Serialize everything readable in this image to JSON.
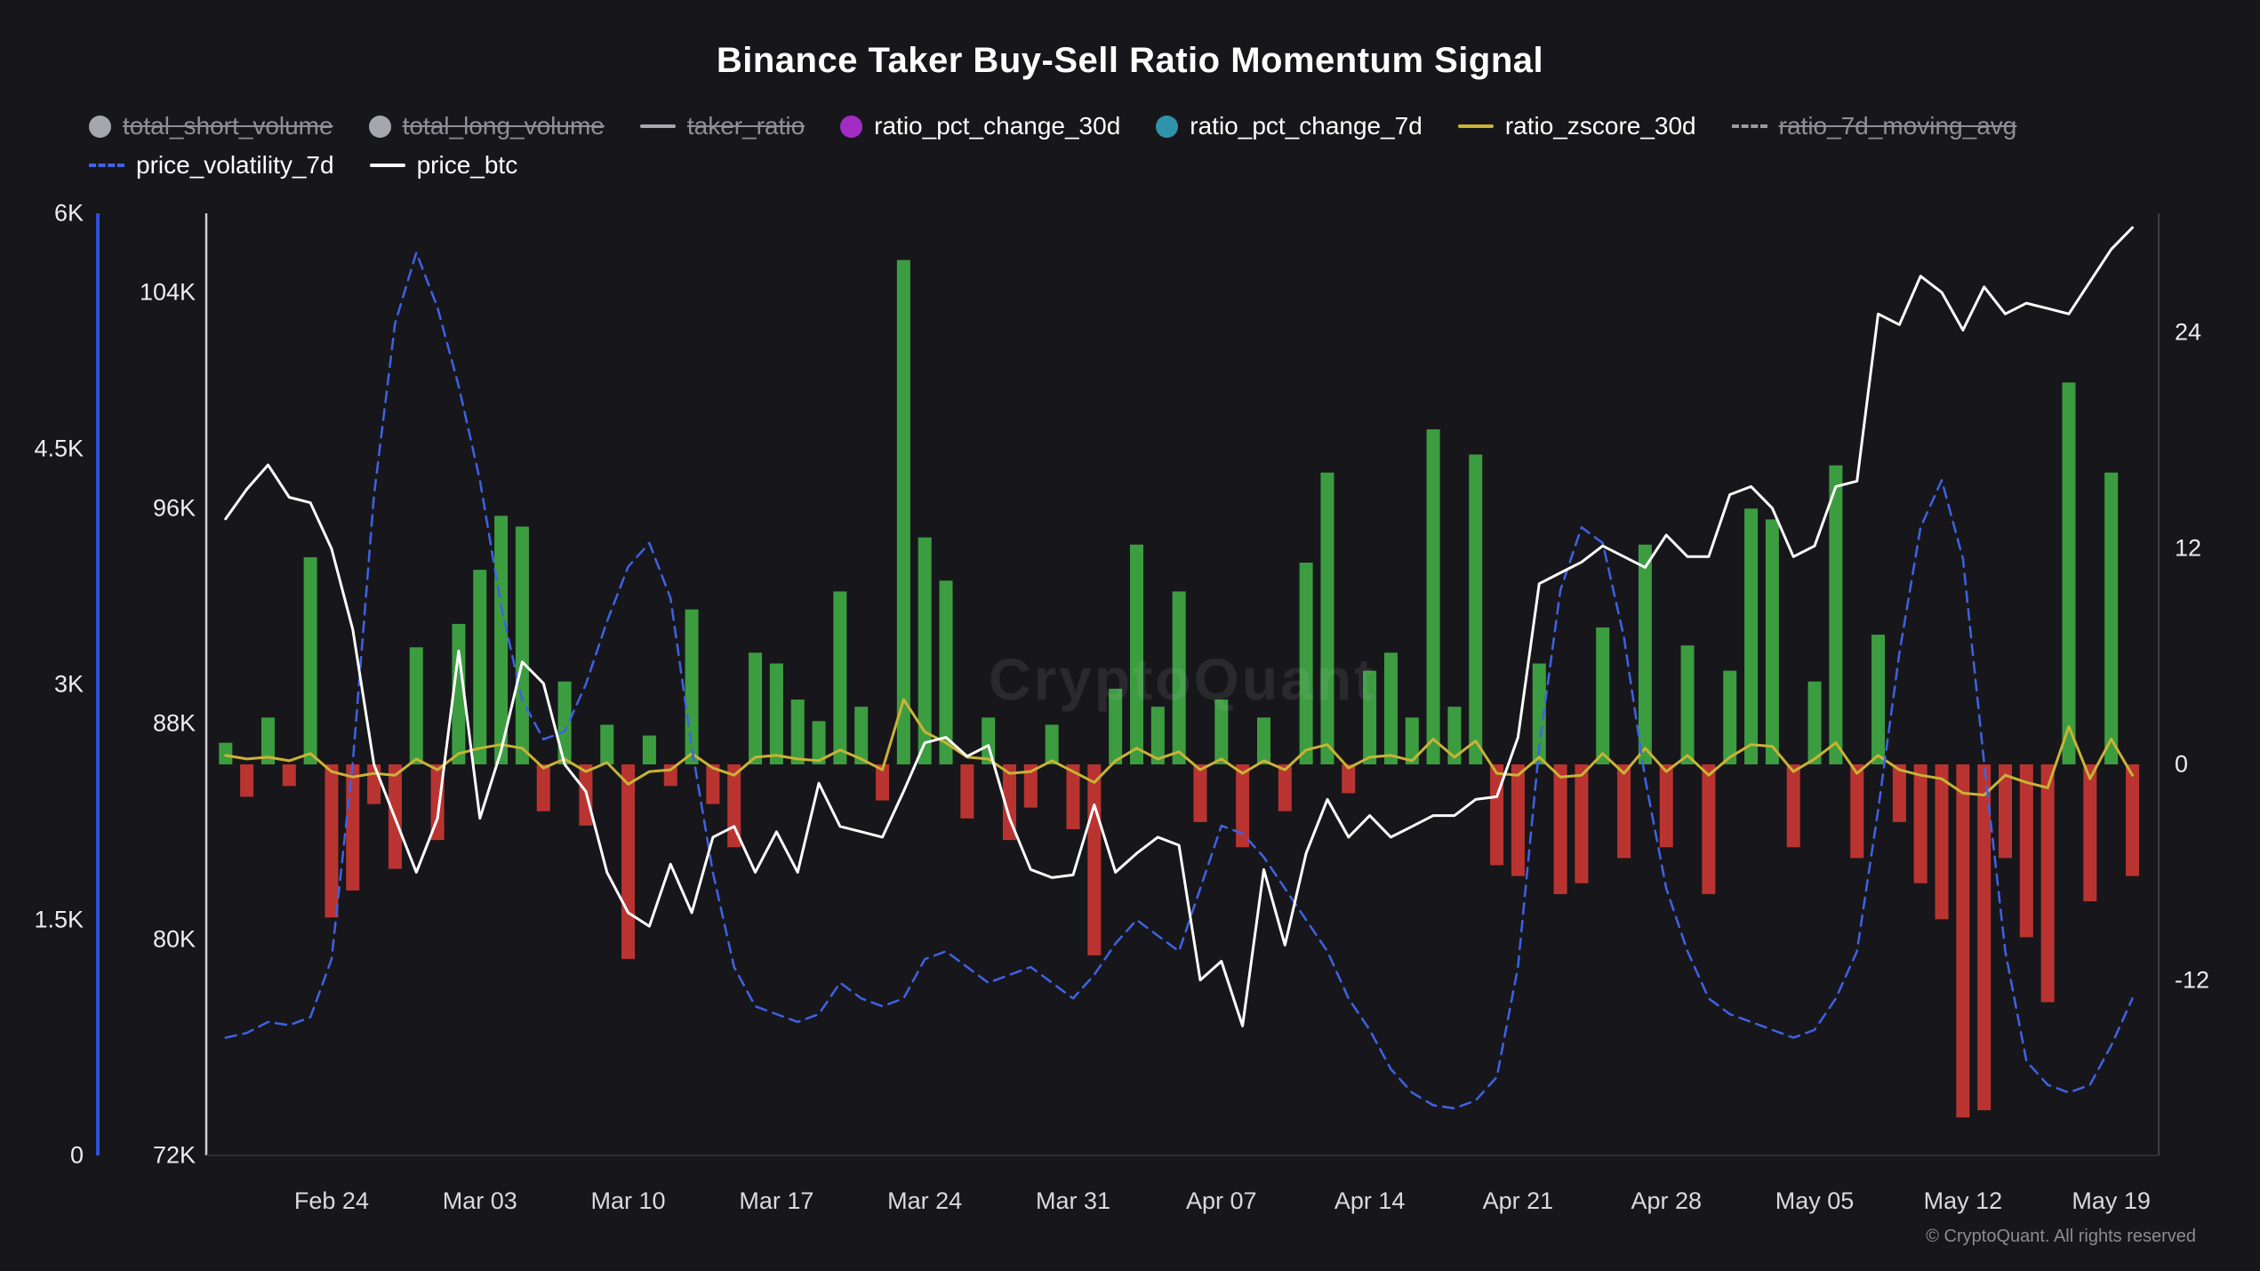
{
  "header": {
    "title": "Binance Taker Buy-Sell Ratio Momentum Signal"
  },
  "watermark": "CryptoQuant",
  "footer": "© CryptoQuant. All rights reserved",
  "colors": {
    "background": "#17171b",
    "bar_positive": "#3c9d40",
    "bar_negative": "#b93431",
    "price_line": "#ffffff",
    "volatility_line": "#3f62e4",
    "zscore_line": "#c9b335",
    "volatility_axis": "#2f4fd6",
    "disabled_legend": "#a6a6ae"
  },
  "legend": {
    "rows": [
      [
        {
          "label": "total_short_volume",
          "icon": "circle",
          "color": "#a6a6ae",
          "disabled": true
        },
        {
          "label": "total_long_volume",
          "icon": "circle",
          "color": "#a6a6ae",
          "disabled": true
        },
        {
          "label": "taker_ratio",
          "icon": "line",
          "color": "#a6a6ae",
          "disabled": true
        },
        {
          "label": "ratio_pct_change_30d",
          "icon": "circle",
          "color": "#a32cc4",
          "disabled": false
        },
        {
          "label": "ratio_pct_change_7d",
          "icon": "circle",
          "color": "#2f94aa",
          "disabled": false
        },
        {
          "label": "ratio_zscore_30d",
          "icon": "line",
          "color": "#c9b335",
          "disabled": false
        },
        {
          "label": "ratio_7d_moving_avg",
          "icon": "dash",
          "color": "#9a9aa0",
          "disabled": true
        }
      ],
      [
        {
          "label": "price_volatility_7d",
          "icon": "dash",
          "color": "#3f62e4",
          "disabled": false
        },
        {
          "label": "price_btc",
          "icon": "line",
          "color": "#ffffff",
          "disabled": false
        }
      ]
    ]
  },
  "chart_data": {
    "type": "bar",
    "title": "Binance Taker Buy-Sell Ratio Momentum Signal",
    "n_points": 91,
    "x_unit": "day",
    "x_ticks": [
      {
        "label": "Feb 24",
        "i": 5
      },
      {
        "label": "Mar 03",
        "i": 12
      },
      {
        "label": "Mar 10",
        "i": 19
      },
      {
        "label": "Mar 17",
        "i": 26
      },
      {
        "label": "Mar 24",
        "i": 33
      },
      {
        "label": "Mar 31",
        "i": 40
      },
      {
        "label": "Apr 07",
        "i": 47
      },
      {
        "label": "Apr 14",
        "i": 54
      },
      {
        "label": "Apr 21",
        "i": 61
      },
      {
        "label": "Apr 28",
        "i": 68
      },
      {
        "label": "May 05",
        "i": 75
      },
      {
        "label": "May 12",
        "i": 82
      },
      {
        "label": "May 19",
        "i": 89
      }
    ],
    "axes": {
      "volatility": {
        "side": "left-outer",
        "min": 0,
        "max": 6000,
        "color": "#2f4fd6",
        "ticks": [
          {
            "label": "6K",
            "v": 6000
          },
          {
            "label": "4.5K",
            "v": 4500
          },
          {
            "label": "3K",
            "v": 3000
          },
          {
            "label": "1.5K",
            "v": 1500
          },
          {
            "label": "0",
            "v": 0
          }
        ]
      },
      "price": {
        "side": "left",
        "min": 72,
        "max": 106.93,
        "unit": "K USD",
        "ticks": [
          {
            "label": "104K",
            "v": 104
          },
          {
            "label": "96K",
            "v": 96
          },
          {
            "label": "88K",
            "v": 88
          },
          {
            "label": "80K",
            "v": 80
          },
          {
            "label": "72K",
            "v": 72
          }
        ]
      },
      "pct": {
        "side": "right",
        "min": -21.7,
        "max": 30.6,
        "ticks": [
          {
            "label": "24",
            "v": 24
          },
          {
            "label": "12",
            "v": 12
          },
          {
            "label": "0",
            "v": 0
          },
          {
            "label": "-12",
            "v": -12
          }
        ]
      }
    },
    "series": [
      {
        "name": "ratio_pct_change",
        "render": "bar",
        "axis": "pct",
        "pos_color": "#3c9d40",
        "neg_color": "#b93431",
        "values": [
          1.2,
          -1.8,
          2.6,
          -1.2,
          11.5,
          -8.5,
          -7.0,
          -2.2,
          -5.8,
          6.5,
          -4.2,
          7.8,
          10.8,
          13.8,
          13.2,
          -2.6,
          4.6,
          -3.4,
          2.2,
          -10.8,
          1.6,
          -1.2,
          8.6,
          -2.2,
          -4.6,
          6.2,
          5.6,
          3.6,
          2.4,
          9.6,
          3.2,
          -2.0,
          28.0,
          12.6,
          10.2,
          -3.0,
          2.6,
          -4.2,
          -2.4,
          2.2,
          -3.6,
          -10.6,
          4.2,
          12.2,
          3.2,
          9.6,
          -3.2,
          3.6,
          -4.6,
          2.6,
          -2.6,
          11.2,
          16.2,
          -1.6,
          5.2,
          6.2,
          2.6,
          18.6,
          3.2,
          17.2,
          -5.6,
          -6.2,
          5.6,
          -7.2,
          -6.6,
          7.6,
          -5.2,
          12.2,
          -4.6,
          6.6,
          -7.2,
          5.2,
          14.2,
          13.6,
          -4.6,
          4.6,
          16.6,
          -5.2,
          7.2,
          -3.2,
          -6.6,
          -8.6,
          -19.6,
          -19.2,
          -5.2,
          -9.6,
          -13.2,
          21.2,
          -7.6,
          16.2,
          -6.2
        ]
      },
      {
        "name": "ratio_zscore_30d",
        "render": "line",
        "axis": "pct",
        "color": "#c9b335",
        "values": [
          0.5,
          0.3,
          0.4,
          0.2,
          0.6,
          -0.4,
          -0.7,
          -0.5,
          -0.6,
          0.3,
          -0.3,
          0.6,
          0.9,
          1.1,
          0.9,
          -0.2,
          0.3,
          -0.4,
          0.1,
          -1.1,
          -0.4,
          -0.3,
          0.6,
          -0.2,
          -0.6,
          0.4,
          0.5,
          0.3,
          0.2,
          0.8,
          0.3,
          -0.3,
          3.6,
          1.8,
          1.2,
          0.4,
          0.3,
          -0.5,
          -0.4,
          0.2,
          -0.4,
          -1.0,
          0.2,
          0.9,
          0.3,
          0.7,
          -0.3,
          0.3,
          -0.5,
          0.2,
          -0.3,
          0.8,
          1.1,
          -0.2,
          0.4,
          0.5,
          0.2,
          1.4,
          0.4,
          1.3,
          -0.5,
          -0.6,
          0.4,
          -0.7,
          -0.6,
          0.6,
          -0.5,
          0.9,
          -0.4,
          0.5,
          -0.6,
          0.4,
          1.1,
          1.0,
          -0.4,
          0.3,
          1.2,
          -0.5,
          0.5,
          -0.3,
          -0.6,
          -0.8,
          -1.6,
          -1.7,
          -0.6,
          -1.0,
          -1.3,
          2.1,
          -0.8,
          1.4,
          -0.6
        ]
      },
      {
        "name": "price_volatility_7d",
        "render": "dashed-line",
        "axis": "volatility",
        "color": "#3f62e4",
        "values": [
          750,
          780,
          850,
          830,
          880,
          1250,
          2500,
          4200,
          5300,
          5750,
          5400,
          4900,
          4300,
          3500,
          2900,
          2650,
          2700,
          3000,
          3400,
          3750,
          3900,
          3550,
          2600,
          1800,
          1200,
          950,
          900,
          850,
          900,
          1100,
          1000,
          950,
          1000,
          1250,
          1300,
          1200,
          1100,
          1150,
          1200,
          1100,
          1000,
          1150,
          1350,
          1500,
          1400,
          1300,
          1700,
          2100,
          2050,
          1900,
          1700,
          1500,
          1300,
          1000,
          800,
          550,
          400,
          320,
          300,
          350,
          500,
          1200,
          2600,
          3600,
          4000,
          3900,
          3300,
          2400,
          1700,
          1300,
          1000,
          900,
          850,
          800,
          750,
          800,
          1000,
          1300,
          2200,
          3200,
          4000,
          4300,
          3800,
          2500,
          1300,
          600,
          450,
          400,
          450,
          700,
          1000
        ]
      },
      {
        "name": "price_btc",
        "render": "line",
        "axis": "price",
        "color": "#ffffff",
        "values": [
          95.6,
          96.7,
          97.6,
          96.4,
          96.2,
          94.5,
          91.5,
          86.5,
          84.5,
          82.5,
          84.5,
          90.7,
          84.5,
          87.0,
          90.3,
          89.5,
          86.5,
          85.5,
          82.5,
          81.0,
          80.5,
          82.8,
          81.0,
          83.8,
          84.2,
          82.5,
          84.0,
          82.5,
          85.8,
          84.2,
          84.0,
          83.8,
          85.5,
          87.3,
          87.5,
          86.8,
          87.2,
          84.5,
          82.6,
          82.3,
          82.4,
          85.0,
          82.5,
          83.2,
          83.8,
          83.5,
          78.5,
          79.2,
          76.8,
          82.6,
          79.8,
          83.2,
          85.2,
          83.8,
          84.6,
          83.8,
          84.2,
          84.6,
          84.6,
          85.2,
          85.3,
          87.5,
          93.2,
          93.6,
          94.0,
          94.6,
          94.2,
          93.8,
          95.0,
          94.2,
          94.2,
          96.5,
          96.8,
          96.0,
          94.2,
          94.6,
          96.8,
          97.0,
          103.2,
          102.8,
          104.6,
          104.0,
          102.6,
          104.2,
          103.2,
          103.6,
          103.4,
          103.2,
          104.4,
          105.6,
          106.4
        ]
      }
    ]
  }
}
